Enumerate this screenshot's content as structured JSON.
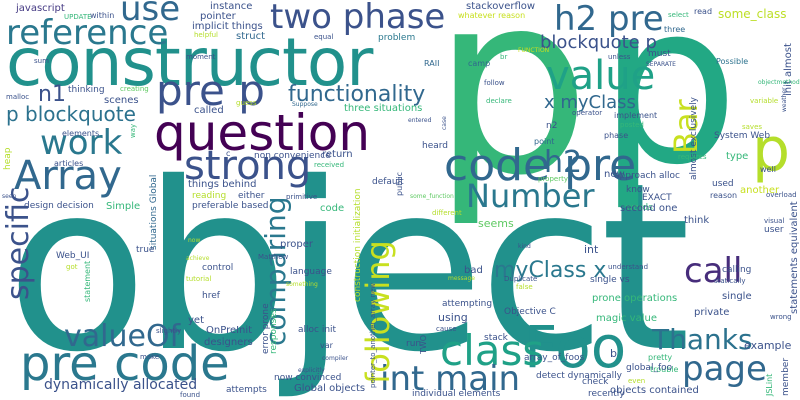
{
  "palette": {
    "teal": "#21918c",
    "dark_teal": "#2a788e",
    "navy": "#3b528b",
    "blue": "#31688e",
    "purple": "#440154",
    "violet": "#472d7b",
    "green": "#35b779",
    "light_green": "#5ec962",
    "lime": "#90d743",
    "yellow": "#c8e020",
    "cyan": "#20a486"
  },
  "words": [
    {
      "text": "object",
      "color": "#21918c"
    },
    {
      "text": "p",
      "color": "#35b779"
    },
    {
      "text": "p",
      "color": "#22a884"
    },
    {
      "text": "constructor",
      "color": "#21918c"
    },
    {
      "text": "question",
      "color": "#440154"
    },
    {
      "text": "reference",
      "color": "#2a788e"
    },
    {
      "text": "two phase",
      "color": "#3b528b"
    },
    {
      "text": "code pre",
      "color": "#31688e"
    },
    {
      "text": "pre p",
      "color": "#3b528b"
    },
    {
      "text": "Foo",
      "color": "#21918c"
    },
    {
      "text": "pre code",
      "color": "#2a788e"
    },
    {
      "text": "class",
      "color": "#1fa187"
    },
    {
      "text": "value",
      "color": "#1fa187"
    },
    {
      "text": "Array",
      "color": "#31688e"
    },
    {
      "text": "work",
      "color": "#2a788e"
    },
    {
      "text": "strong",
      "color": "#3b528b"
    },
    {
      "text": "use",
      "color": "#31688e"
    },
    {
      "text": "h2 pre",
      "color": "#31688e"
    },
    {
      "text": "h2",
      "color": "#31688e"
    },
    {
      "text": "Number",
      "color": "#2a788e"
    },
    {
      "text": "call",
      "color": "#472d7b"
    },
    {
      "text": "page",
      "color": "#31688e"
    },
    {
      "text": "int main",
      "color": "#31688e"
    },
    {
      "text": "Thanks",
      "color": "#2c728e"
    },
    {
      "text": "following",
      "color": "#c8e020"
    },
    {
      "text": "comparing",
      "color": "#2a788e"
    },
    {
      "text": "specific",
      "color": "#3b528b"
    },
    {
      "text": "valueOf",
      "color": "#31688e"
    },
    {
      "text": "Bar",
      "color": "#c8e020"
    },
    {
      "text": "p",
      "color": "#b5de2b"
    },
    {
      "text": "functionality",
      "color": "#31688e"
    },
    {
      "text": "p blockquote",
      "color": "#2c728e"
    },
    {
      "text": "blockquote p",
      "color": "#3b528b"
    },
    {
      "text": "myClass x",
      "color": "#2a788e"
    },
    {
      "text": "x myClass",
      "color": "#31688e"
    },
    {
      "text": "n1",
      "color": "#3b528b"
    },
    {
      "text": "dynamically allocated",
      "color": "#3b528b"
    },
    {
      "text": "javascript",
      "color": "#443983"
    },
    {
      "text": "instance",
      "color": "#3b528b"
    },
    {
      "text": "pointer",
      "color": "#3b528b"
    },
    {
      "text": "implicit things",
      "color": "#3b528b"
    },
    {
      "text": "stackoverflow",
      "color": "#3b528b"
    },
    {
      "text": "some_class",
      "color": "#bddf26"
    },
    {
      "text": "init almost",
      "color": "#3b528b"
    },
    {
      "text": "UPDATE",
      "color": "#35b779"
    },
    {
      "text": "within",
      "color": "#3b528b"
    },
    {
      "text": "three",
      "color": "#31688e"
    },
    {
      "text": "whatever reason",
      "color": "#c8e020"
    },
    {
      "text": "read",
      "color": "#3b528b"
    },
    {
      "text": "select",
      "color": "#35b779"
    },
    {
      "text": "helpful",
      "color": "#b5de2b"
    },
    {
      "text": "equal",
      "color": "#3b528b"
    },
    {
      "text": "problem",
      "color": "#2a788e"
    },
    {
      "text": "struct",
      "color": "#31688e"
    },
    {
      "text": "sum",
      "color": "#3b528b"
    },
    {
      "text": "moment",
      "color": "#3b528b"
    },
    {
      "text": "camp",
      "color": "#31688e"
    },
    {
      "text": "br",
      "color": "#35b779"
    },
    {
      "text": "FUNCTION",
      "color": "#c8e020"
    },
    {
      "text": "unless",
      "color": "#3b528b"
    },
    {
      "text": "must",
      "color": "#3b528b"
    },
    {
      "text": "RAII",
      "color": "#31688e"
    },
    {
      "text": "SEPARATE",
      "color": "#3b528b"
    },
    {
      "text": "Possible",
      "color": "#2c728e"
    },
    {
      "text": "objectmethod",
      "color": "#35b779"
    },
    {
      "text": "variable",
      "color": "#b5de2b"
    },
    {
      "text": "malloc",
      "color": "#3b528b"
    },
    {
      "text": "thinking",
      "color": "#3b528b"
    },
    {
      "text": "creating",
      "color": "#5ec962"
    },
    {
      "text": "follow",
      "color": "#3b528b"
    },
    {
      "text": "declare",
      "color": "#35b779"
    },
    {
      "text": "implement",
      "color": "#3b528b"
    },
    {
      "text": "almost exclusively",
      "color": "#3b528b"
    },
    {
      "text": "scenes",
      "color": "#3b528b"
    },
    {
      "text": "Suppose",
      "color": "#31688e"
    },
    {
      "text": "operator",
      "color": "#3b528b"
    },
    {
      "text": "posted",
      "color": "#35b779"
    },
    {
      "text": "called",
      "color": "#3b528b"
    },
    {
      "text": "guess",
      "color": "#b5de2b"
    },
    {
      "text": "three situations",
      "color": "#35b779"
    },
    {
      "text": "n2",
      "color": "#3b528b"
    },
    {
      "text": "phase",
      "color": "#3b528b"
    },
    {
      "text": "saves",
      "color": "#b5de2b"
    },
    {
      "text": "way",
      "color": "#35b779"
    },
    {
      "text": "entered",
      "color": "#3b528b"
    },
    {
      "text": "case",
      "color": "#3b528b"
    },
    {
      "text": "point",
      "color": "#31688e"
    },
    {
      "text": "elements",
      "color": "#3b528b"
    },
    {
      "text": "articles",
      "color": "#3b528b"
    },
    {
      "text": "heap",
      "color": "#b5de2b"
    },
    {
      "text": "situations Global",
      "color": "#31688e"
    },
    {
      "text": "non convenience",
      "color": "#3b528b"
    },
    {
      "text": "return",
      "color": "#3b528b"
    },
    {
      "text": "heard",
      "color": "#3b528b"
    },
    {
      "text": "System Web",
      "color": "#3b528b"
    },
    {
      "text": "requires",
      "color": "#35b779"
    },
    {
      "text": "type",
      "color": "#35b779"
    },
    {
      "text": "well",
      "color": "#3b528b"
    },
    {
      "text": "things behind",
      "color": "#3b528b"
    },
    {
      "text": "received",
      "color": "#35b779"
    },
    {
      "text": "primitive",
      "color": "#3b528b"
    },
    {
      "text": "property",
      "color": "#5ec962"
    },
    {
      "text": "approach alloc",
      "color": "#3b528b"
    },
    {
      "text": "know",
      "color": "#3b528b"
    },
    {
      "text": "another",
      "color": "#c8e020"
    },
    {
      "text": "used",
      "color": "#3b528b"
    },
    {
      "text": "reason",
      "color": "#3b528b"
    },
    {
      "text": "seen",
      "color": "#3b528b"
    },
    {
      "text": "design decision",
      "color": "#3b528b"
    },
    {
      "text": "Simple",
      "color": "#35b779"
    },
    {
      "text": "reading",
      "color": "#b5de2b"
    },
    {
      "text": "either",
      "color": "#3b528b"
    },
    {
      "text": "preferable based",
      "color": "#3b528b"
    },
    {
      "text": "code",
      "color": "#35b779"
    },
    {
      "text": "construction initialization",
      "color": "#b5de2b"
    },
    {
      "text": "default",
      "color": "#3b528b"
    },
    {
      "text": "public",
      "color": "#3b528b"
    },
    {
      "text": "some_function",
      "color": "#5ec962"
    },
    {
      "text": "different",
      "color": "#b5de2b"
    },
    {
      "text": "EXACT",
      "color": "#3b528b"
    },
    {
      "text": "words",
      "color": "#35b779"
    },
    {
      "text": "second one",
      "color": "#3b528b"
    },
    {
      "text": "think",
      "color": "#3b528b"
    },
    {
      "text": "statements equivalent",
      "color": "#3b528b"
    },
    {
      "text": "overload",
      "color": "#3b528b"
    },
    {
      "text": "visual",
      "color": "#3b528b"
    },
    {
      "text": "user",
      "color": "#3b528b"
    },
    {
      "text": "true",
      "color": "#3b528b"
    },
    {
      "text": "Web_UI",
      "color": "#3b528b"
    },
    {
      "text": "got",
      "color": "#b5de2b"
    },
    {
      "text": "statement",
      "color": "#35b779"
    },
    {
      "text": "now",
      "color": "#b5de2b"
    },
    {
      "text": "achieve",
      "color": "#b5de2b"
    },
    {
      "text": "tutorial",
      "color": "#b5de2b"
    },
    {
      "text": "href",
      "color": "#3b528b"
    },
    {
      "text": "Matthew",
      "color": "#3b528b"
    },
    {
      "text": "control",
      "color": "#3b528b"
    },
    {
      "text": "proper",
      "color": "#3b528b"
    },
    {
      "text": "language",
      "color": "#3b528b"
    },
    {
      "text": "something",
      "color": "#b5de2b"
    },
    {
      "text": "pointer_to_another_array new",
      "color": "#3b528b"
    },
    {
      "text": "seems",
      "color": "#5ec962"
    },
    {
      "text": "bad",
      "color": "#3b528b"
    },
    {
      "text": "int",
      "color": "#3b528b"
    },
    {
      "text": "kind",
      "color": "#3b528b"
    },
    {
      "text": "Duplicate",
      "color": "#3b528b"
    },
    {
      "text": "understand",
      "color": "#3b528b"
    },
    {
      "text": "single vs",
      "color": "#3b528b"
    },
    {
      "text": "prone operations",
      "color": "#35b779"
    },
    {
      "text": "calling",
      "color": "#3b528b"
    },
    {
      "text": "statically",
      "color": "#3b528b"
    },
    {
      "text": "private",
      "color": "#3b528b"
    },
    {
      "text": "single",
      "color": "#3b528b"
    },
    {
      "text": "example",
      "color": "#3b528b"
    },
    {
      "text": "wrong",
      "color": "#3b528b"
    },
    {
      "text": "false",
      "color": "#b5de2b"
    },
    {
      "text": "message",
      "color": "#b5de2b"
    },
    {
      "text": "attempting",
      "color": "#3b528b"
    },
    {
      "text": "magic value",
      "color": "#35b779"
    },
    {
      "text": "using",
      "color": "#3b528b"
    },
    {
      "text": "Objective C",
      "color": "#3b528b"
    },
    {
      "text": "pretty",
      "color": "#35b779"
    },
    {
      "text": "trouble",
      "color": "#35b779"
    },
    {
      "text": "global_foo",
      "color": "#3b528b"
    },
    {
      "text": "even",
      "color": "#b5de2b"
    },
    {
      "text": "stack",
      "color": "#3b528b"
    },
    {
      "text": "array_of_foos",
      "color": "#3b528b"
    },
    {
      "text": "yet",
      "color": "#3b528b"
    },
    {
      "text": "OnPreInit",
      "color": "#3b528b"
    },
    {
      "text": "designers",
      "color": "#3b528b"
    },
    {
      "text": "error prone",
      "color": "#3b528b"
    },
    {
      "text": "responses",
      "color": "#35b779"
    },
    {
      "text": "alloc init",
      "color": "#3b528b"
    },
    {
      "text": "var",
      "color": "#3b528b"
    },
    {
      "text": "compiler",
      "color": "#3b528b"
    },
    {
      "text": "explicitly",
      "color": "#3b528b"
    },
    {
      "text": "Global objects",
      "color": "#3b528b"
    },
    {
      "text": "now convinced",
      "color": "#3b528b"
    },
    {
      "text": "attempts",
      "color": "#3b528b"
    },
    {
      "text": "found",
      "color": "#3b528b"
    },
    {
      "text": "slightly",
      "color": "#3b528b"
    },
    {
      "text": "make",
      "color": "#3b528b"
    },
    {
      "text": "cause",
      "color": "#3b528b"
    },
    {
      "text": "run",
      "color": "#3b528b"
    },
    {
      "text": "TWO",
      "color": "#3b528b"
    },
    {
      "text": "individual elements",
      "color": "#3b528b"
    },
    {
      "text": "detect dynamically",
      "color": "#3b528b"
    },
    {
      "text": "check",
      "color": "#3b528b"
    },
    {
      "text": "objects contained",
      "color": "#3b528b"
    },
    {
      "text": "recently",
      "color": "#3b528b"
    },
    {
      "text": "JSLint",
      "color": "#35b779"
    },
    {
      "text": "member",
      "color": "#3b528b"
    },
    {
      "text": "b",
      "color": "#3b528b"
    },
    {
      "text": "new",
      "color": "#3b528b"
    },
    {
      "text": "c",
      "color": "#3b528b"
    },
    {
      "text": "weather",
      "color": "#3b528b"
    }
  ]
}
